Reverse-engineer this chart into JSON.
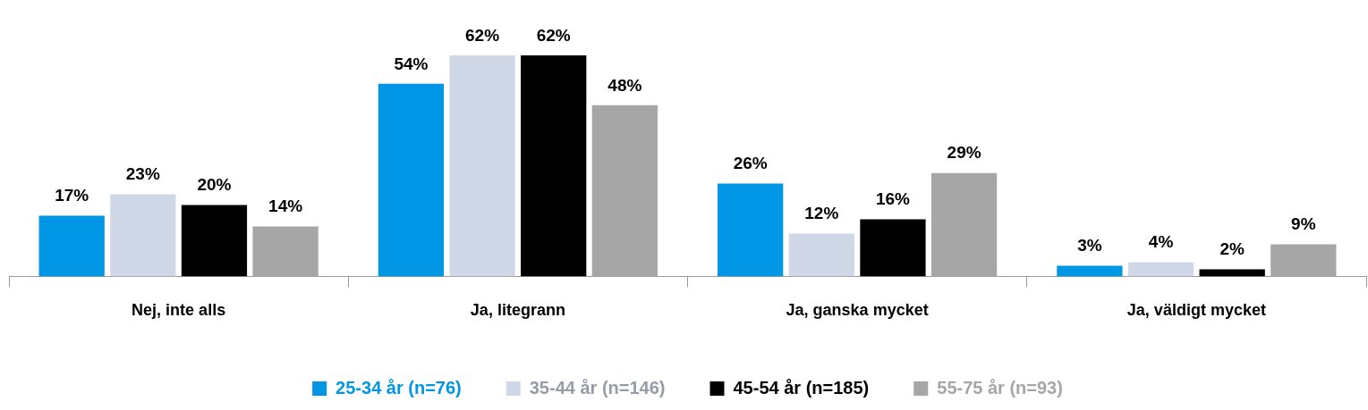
{
  "chart_data": {
    "type": "bar",
    "categories": [
      "Nej, inte alls",
      "Ja, litegrann",
      "Ja, ganska mycket",
      "Ja, väldigt mycket"
    ],
    "series": [
      {
        "name": "25-34 år (n=76)",
        "color": "#0096e6",
        "values": [
          17,
          54,
          26,
          3
        ],
        "value_labels": [
          "17%",
          "54%",
          "26%",
          "3%"
        ]
      },
      {
        "name": "35-44 år (n=146)",
        "color": "#d0d8e8",
        "values": [
          23,
          62,
          12,
          4
        ],
        "value_labels": [
          "23%",
          "62%",
          "12%",
          "4%"
        ]
      },
      {
        "name": "45-54 år (n=185)",
        "color": "#000000",
        "values": [
          20,
          62,
          16,
          2
        ],
        "value_labels": [
          "20%",
          "62%",
          "16%",
          "2%"
        ]
      },
      {
        "name": "55-75 år (n=93)",
        "color": "#a6a6a6",
        "values": [
          14,
          48,
          29,
          9
        ],
        "value_labels": [
          "14%",
          "48%",
          "29%",
          "9%"
        ]
      }
    ],
    "grid": false,
    "legend": "bottom"
  }
}
